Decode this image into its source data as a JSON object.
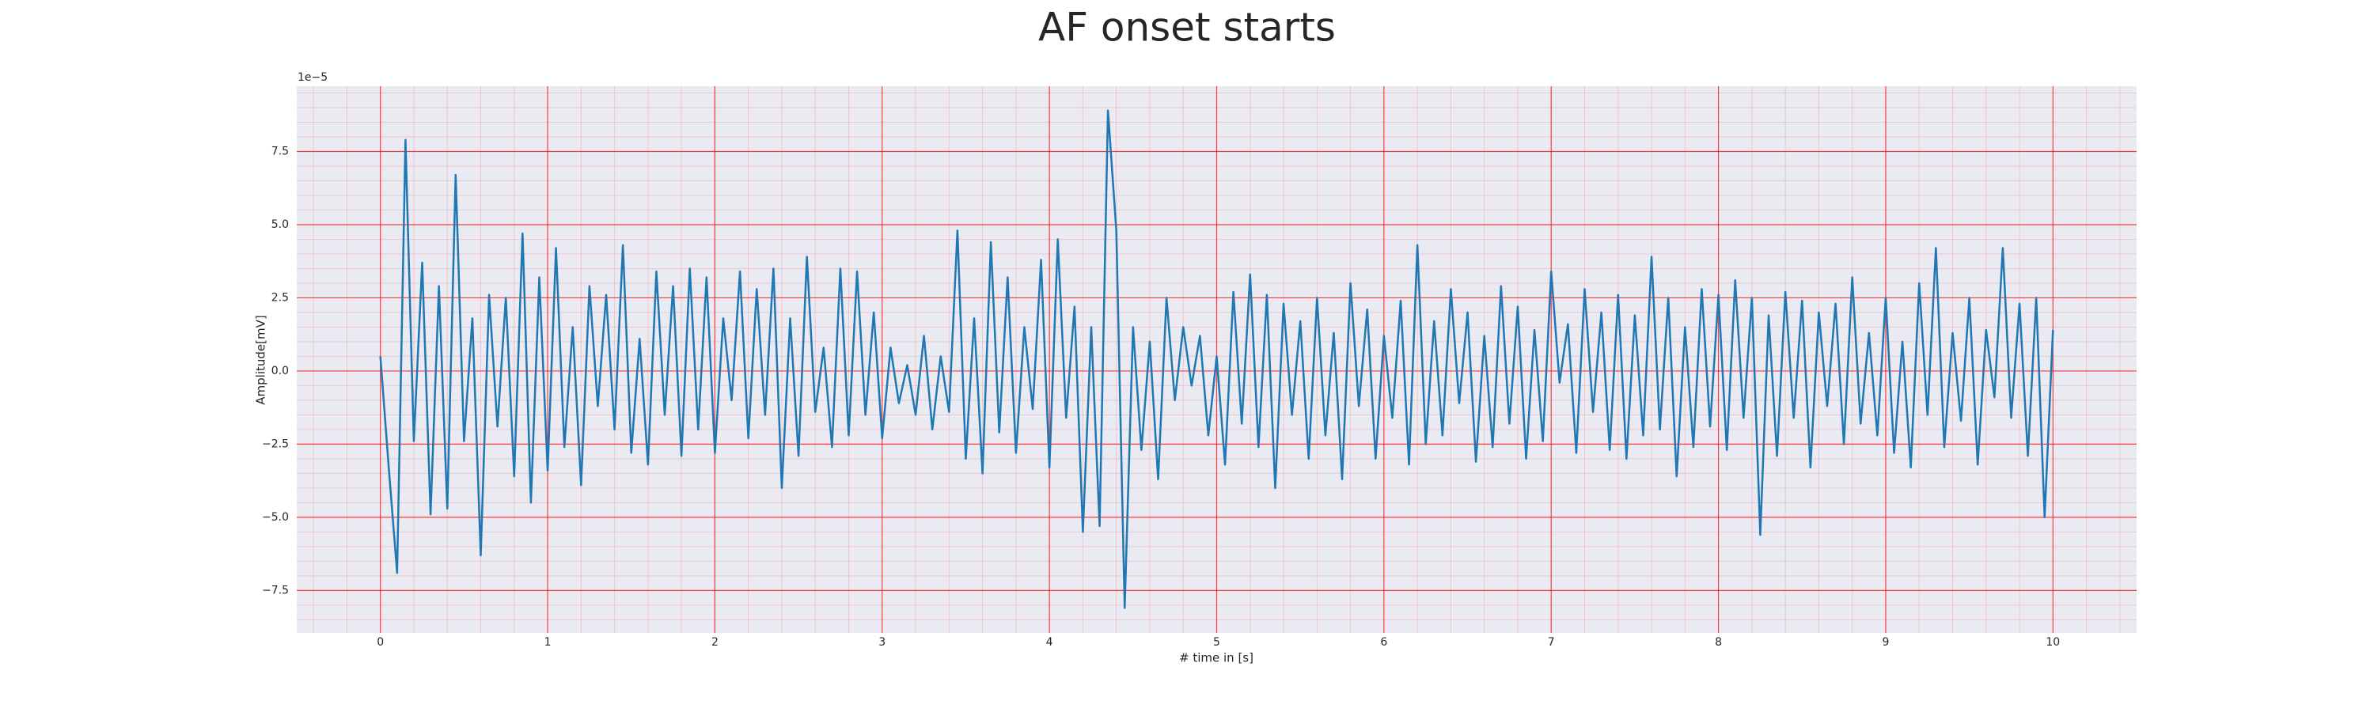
{
  "chart_data": {
    "type": "line",
    "title": "AF onset starts",
    "xlabel": "# time in [s]",
    "ylabel": "Amplitude[mV]",
    "y_offset_label": "1e−5",
    "xlim": [
      -0.5,
      10.5
    ],
    "ylim": [
      -8.95,
      9.73
    ],
    "xticks": [
      0,
      1,
      2,
      3,
      4,
      5,
      6,
      7,
      8,
      9,
      10
    ],
    "yticks": [
      {
        "value": -7.5,
        "label": "−7.5"
      },
      {
        "value": -5,
        "label": "−5.0"
      },
      {
        "value": -2.5,
        "label": "−2.5"
      },
      {
        "value": 0,
        "label": "0.0"
      },
      2.5,
      {
        "value": 5,
        "label": "5.0"
      },
      7.5
    ],
    "grid": true,
    "minor_grid": true,
    "grid_color": "#ff0000",
    "background": "#eaeaf2",
    "x": [
      0,
      0.05,
      0.1,
      0.15,
      0.2,
      0.25,
      0.3,
      0.35,
      0.4,
      0.45,
      0.5,
      0.55,
      0.6,
      0.65,
      0.7,
      0.75,
      0.8,
      0.85,
      0.9,
      0.95,
      1,
      1.05,
      1.1,
      1.15,
      1.2,
      1.25,
      1.3,
      1.35,
      1.4,
      1.45,
      1.5,
      1.55,
      1.6,
      1.65,
      1.7,
      1.75,
      1.8,
      1.85,
      1.9,
      1.95,
      2,
      2.05,
      2.1,
      2.15,
      2.2,
      2.25,
      2.3,
      2.35,
      2.4,
      2.45,
      2.5,
      2.55,
      2.6,
      2.65,
      2.7,
      2.75,
      2.8,
      2.85,
      2.9,
      2.95,
      3,
      3.05,
      3.1,
      3.15,
      3.2,
      3.25,
      3.3,
      3.35,
      3.4,
      3.45,
      3.5,
      3.55,
      3.6,
      3.65,
      3.7,
      3.75,
      3.8,
      3.85,
      3.9,
      3.95,
      4,
      4.05,
      4.1,
      4.15,
      4.2,
      4.25,
      4.3,
      4.35,
      4.4,
      4.45,
      4.5,
      4.55,
      4.6,
      4.65,
      4.7,
      4.75,
      4.8,
      4.85,
      4.9,
      4.95,
      5,
      5.05,
      5.1,
      5.15,
      5.2,
      5.25,
      5.3,
      5.35,
      5.4,
      5.45,
      5.5,
      5.55,
      5.6,
      5.65,
      5.7,
      5.75,
      5.8,
      5.85,
      5.9,
      5.95,
      6,
      6.05,
      6.1,
      6.15,
      6.2,
      6.25,
      6.3,
      6.35,
      6.4,
      6.45,
      6.5,
      6.55,
      6.6,
      6.65,
      6.7,
      6.75,
      6.8,
      6.85,
      6.9,
      6.95,
      7,
      7.05,
      7.1,
      7.15,
      7.2,
      7.25,
      7.3,
      7.35,
      7.4,
      7.45,
      7.5,
      7.55,
      7.6,
      7.65,
      7.7,
      7.75,
      7.8,
      7.85,
      7.9,
      7.95,
      8,
      8.05,
      8.1,
      8.15,
      8.2,
      8.25,
      8.3,
      8.35,
      8.4,
      8.45,
      8.5,
      8.55,
      8.6,
      8.65,
      8.7,
      8.75,
      8.8,
      8.85,
      8.9,
      8.95,
      9,
      9.05,
      9.1,
      9.15,
      9.2,
      9.25,
      9.3,
      9.35,
      9.4,
      9.45,
      9.5,
      9.55,
      9.6,
      9.65,
      9.7,
      9.75,
      9.8,
      9.85,
      9.9,
      9.95,
      10
    ],
    "series": [
      {
        "color": "#1f77b4",
        "values": [
          0.5,
          -3.3,
          -6.9,
          7.9,
          -2.4,
          3.7,
          -4.9,
          2.9,
          -4.7,
          6.7,
          -2.4,
          1.8,
          -6.3,
          2.6,
          -1.9,
          2.5,
          -3.6,
          4.7,
          -4.5,
          3.2,
          -3.4,
          4.2,
          -2.6,
          1.5,
          -3.9,
          2.9,
          -1.2,
          2.6,
          -2.0,
          4.3,
          -2.8,
          1.1,
          -3.2,
          3.4,
          -1.5,
          2.9,
          -2.9,
          3.5,
          -2.0,
          3.2,
          -2.8,
          1.8,
          -1.0,
          3.4,
          -2.3,
          2.8,
          -1.5,
          3.5,
          -4.0,
          1.8,
          -2.9,
          3.9,
          -1.4,
          0.8,
          -2.6,
          3.5,
          -2.2,
          3.4,
          -1.5,
          2.0,
          -2.3,
          0.8,
          -1.1,
          0.2,
          -1.5,
          1.2,
          -2.0,
          0.5,
          -1.4,
          4.8,
          -3.0,
          1.8,
          -3.5,
          4.4,
          -2.1,
          3.2,
          -2.8,
          1.5,
          -1.3,
          3.8,
          -3.3,
          4.5,
          -1.6,
          2.2,
          -5.5,
          1.5,
          -5.3,
          8.9,
          4.8,
          -8.1,
          1.5,
          -2.7,
          1.0,
          -3.7,
          2.5,
          -1.0,
          1.5,
          -0.5,
          1.2,
          -2.2,
          0.5,
          -3.2,
          2.7,
          -1.8,
          3.3,
          -2.6,
          2.6,
          -4.0,
          2.3,
          -1.5,
          1.7,
          -3.0,
          2.5,
          -2.2,
          1.3,
          -3.7,
          3.0,
          -1.2,
          2.1,
          -3.0,
          1.2,
          -1.6,
          2.4,
          -3.2,
          4.3,
          -2.5,
          1.7,
          -2.2,
          2.8,
          -1.1,
          2.0,
          -3.1,
          1.2,
          -2.6,
          2.9,
          -1.8,
          2.2,
          -3.0,
          1.4,
          -2.4,
          3.4,
          -0.4,
          1.6,
          -2.8,
          2.8,
          -1.4,
          2.0,
          -2.7,
          2.6,
          -3.0,
          1.9,
          -2.2,
          3.9,
          -2.0,
          2.5,
          -3.6,
          1.5,
          -2.6,
          2.8,
          -1.9,
          2.6,
          -2.7,
          3.1,
          -1.6,
          2.5,
          -5.6,
          1.9,
          -2.9,
          2.7,
          -1.6,
          2.4,
          -3.3,
          2.0,
          -1.2,
          2.3,
          -2.5,
          3.2,
          -1.8,
          1.3,
          -2.2,
          2.5,
          -2.8,
          1.0,
          -3.3,
          3.0,
          -1.5,
          4.2,
          -2.6,
          1.3,
          -1.7,
          2.5,
          -3.2,
          1.4,
          -0.9,
          4.2,
          -1.6,
          2.3,
          -2.9,
          2.5,
          -5.0,
          1.4
        ]
      }
    ]
  }
}
